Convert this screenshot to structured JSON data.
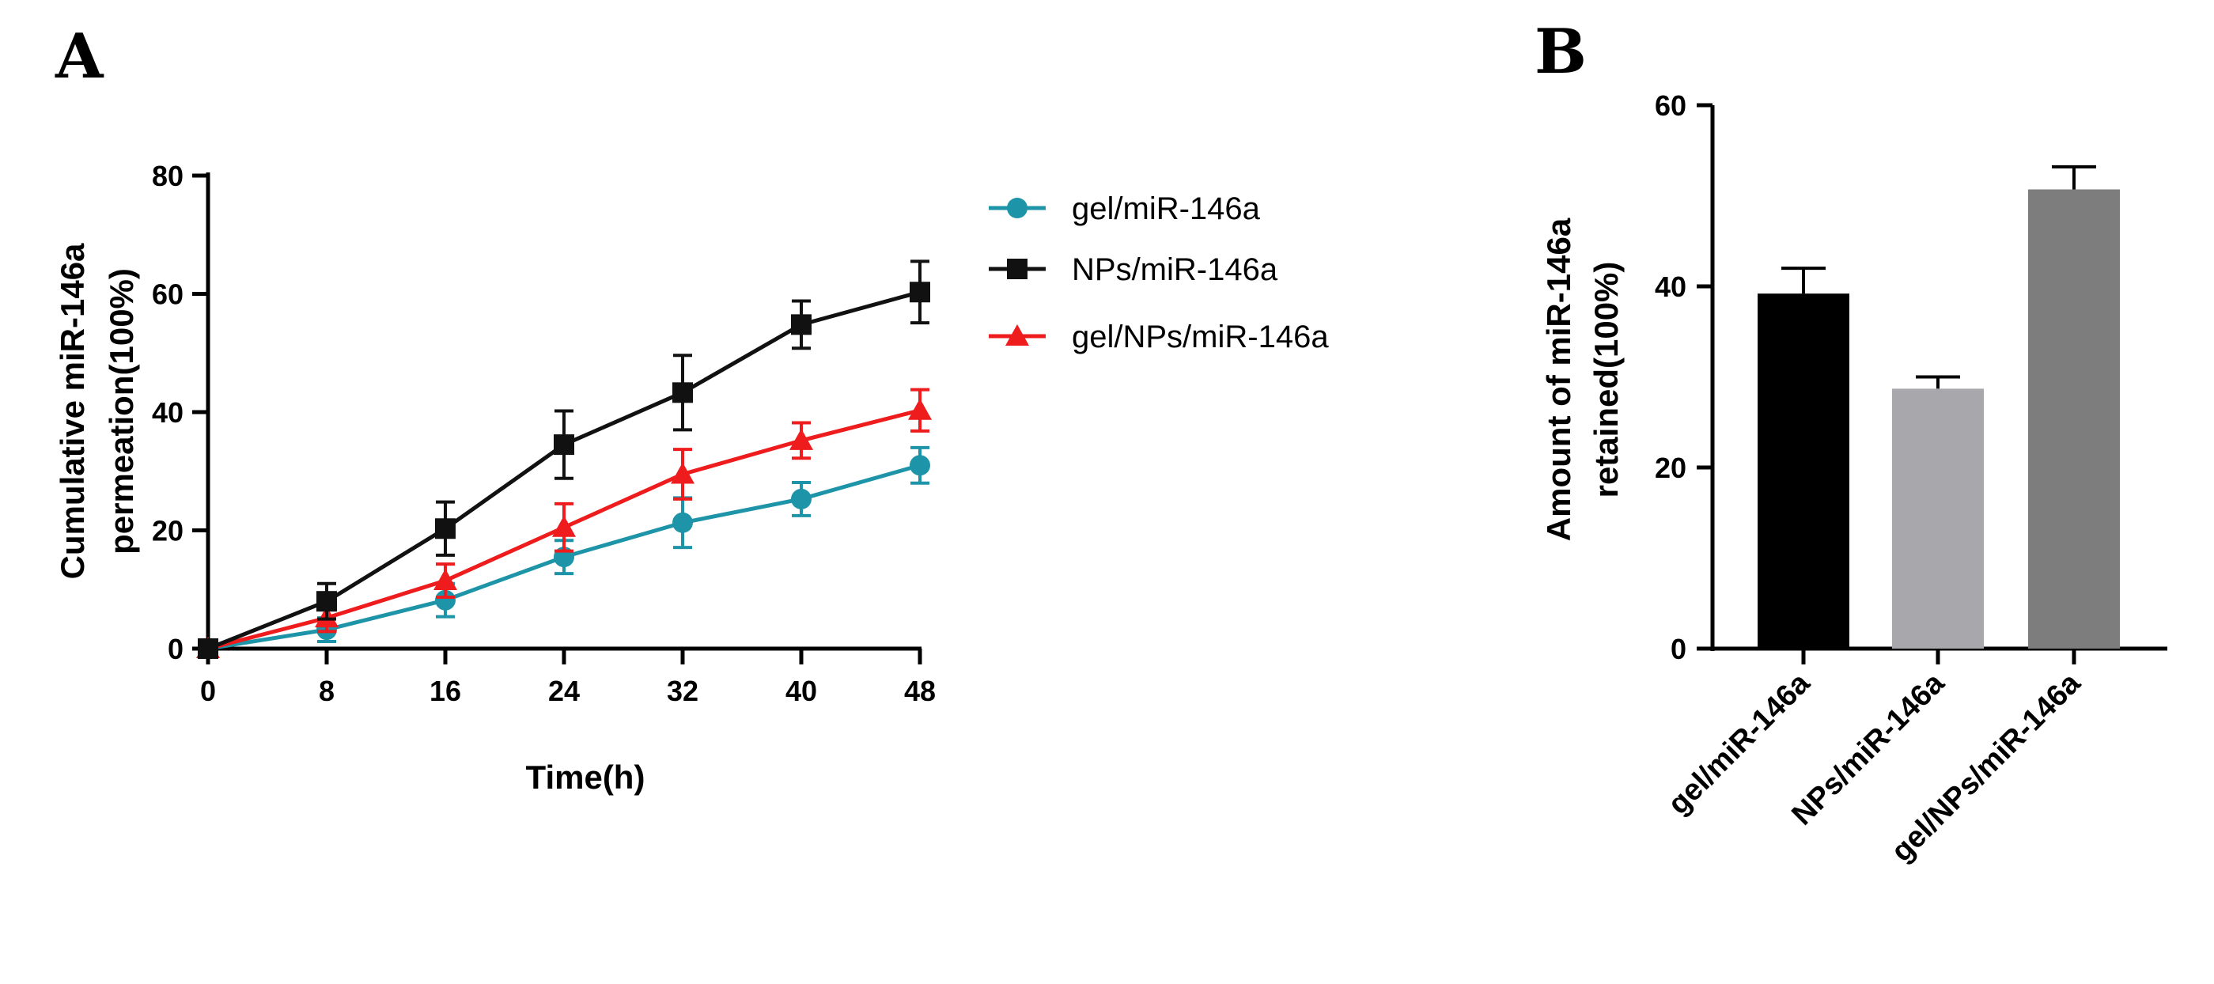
{
  "figure": {
    "panels": [
      {
        "label": "A"
      },
      {
        "label": "B"
      }
    ]
  },
  "chart_data": [
    {
      "type": "line",
      "panel": "A",
      "xlabel": "Time(h)",
      "ylabel_lines": [
        "Cumulative miR-146a",
        "permeation(100%)"
      ],
      "x": [
        0,
        8,
        16,
        24,
        32,
        40,
        48
      ],
      "xticks": [
        "0",
        "8",
        "16",
        "24",
        "32",
        "40",
        "48"
      ],
      "xlim": [
        0,
        48
      ],
      "ylim": [
        0,
        80
      ],
      "yticks": [
        "0",
        "20",
        "40",
        "60",
        "80"
      ],
      "grid": false,
      "legend_position": "right",
      "series": [
        {
          "name": "gel/miR-146a",
          "color": "#1e94a8",
          "marker": "circle",
          "values": [
            0,
            3.2,
            8.2,
            15.5,
            21.3,
            25.3,
            31.0
          ],
          "errors": [
            0,
            2.0,
            2.8,
            2.8,
            4.2,
            2.8,
            3.0
          ]
        },
        {
          "name": "NPs/miR-146a",
          "color": "#111111",
          "marker": "square",
          "values": [
            0,
            8.0,
            20.3,
            34.5,
            43.3,
            54.8,
            60.3
          ],
          "errors": [
            0,
            3.0,
            4.5,
            5.7,
            6.3,
            4.0,
            5.2
          ]
        },
        {
          "name": "gel/NPs/miR-146a",
          "color": "#ee1c1c",
          "marker": "triangle",
          "values": [
            0,
            5.2,
            11.5,
            20.5,
            29.5,
            35.2,
            40.3
          ],
          "errors": [
            0,
            2.3,
            2.8,
            4.0,
            4.2,
            3.0,
            3.5
          ]
        }
      ]
    },
    {
      "type": "bar",
      "panel": "B",
      "ylabel_lines": [
        "Amount of miR-146a",
        "retained(100%)"
      ],
      "categories": [
        "gel/miR-146a",
        "NPs/miR-146a",
        "gel/NPs/miR-146a"
      ],
      "values": [
        39.2,
        28.7,
        50.7
      ],
      "errors": [
        2.8,
        1.3,
        2.5
      ],
      "colors": [
        "#000000",
        "#a8a8ac",
        "#7d7d7d"
      ],
      "ylim": [
        0,
        60
      ],
      "yticks": [
        "0",
        "20",
        "40",
        "60"
      ],
      "grid": false
    }
  ]
}
